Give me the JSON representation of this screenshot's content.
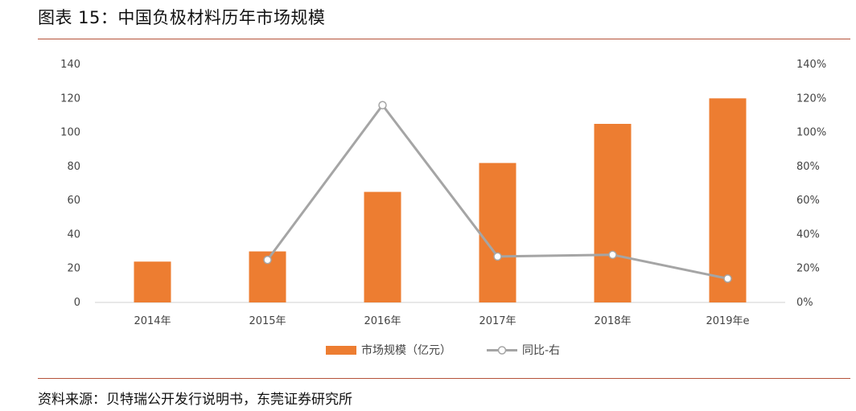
{
  "title": "图表 15：中国负极材料历年市场规模",
  "source": "资料来源：贝特瑞公开发行说明书，东莞证券研究所",
  "chart_data": {
    "type": "bar",
    "categories": [
      "2014年",
      "2015年",
      "2016年",
      "2017年",
      "2018年",
      "2019年e"
    ],
    "series": [
      {
        "name": "市场规模（亿元）",
        "type": "bar",
        "axis": "left",
        "color": "#ed7d31",
        "values": [
          24,
          30,
          65,
          82,
          105,
          120
        ]
      },
      {
        "name": "同比-右",
        "type": "line",
        "axis": "right",
        "color": "#a5a5a5",
        "values": [
          null,
          0.25,
          1.16,
          0.27,
          0.28,
          0.14
        ]
      }
    ],
    "ylim": [
      0,
      140
    ],
    "y_ticks": [
      "0",
      "20",
      "40",
      "60",
      "80",
      "100",
      "120",
      "140"
    ],
    "y2lim": [
      0,
      1.4
    ],
    "y2_ticks": [
      "0%",
      "20%",
      "40%",
      "60%",
      "80%",
      "100%",
      "120%",
      "140%"
    ],
    "grid": false,
    "legend_position": "bottom"
  }
}
